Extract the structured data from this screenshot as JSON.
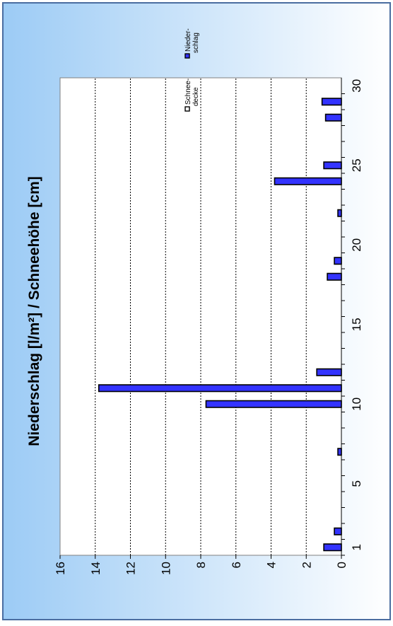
{
  "chart_data": {
    "type": "bar",
    "title": "Niederschlag [l/m²] / Schneehöhe [cm]",
    "xlabel": "",
    "ylabel": "",
    "x_ticks": [
      1,
      5,
      10,
      15,
      20,
      25,
      30
    ],
    "y_ticks": [
      0,
      2,
      4,
      6,
      8,
      10,
      12,
      14,
      16
    ],
    "xlim": [
      1,
      30
    ],
    "ylim": [
      0,
      16
    ],
    "grid": true,
    "legend_position": "top-right",
    "colors": {
      "niederschlag": "#3333ff",
      "schneedecke": "#ffffff",
      "background_start": "#9ccbf5",
      "background_end": "#ffffff",
      "frame_border": "#4a6da0"
    },
    "series": [
      {
        "name": "Nieder-\nschlag",
        "x": [
          1,
          2,
          7,
          10,
          11,
          12,
          18,
          19,
          22,
          24,
          25,
          28,
          29
        ],
        "values": [
          1.0,
          0.4,
          0.2,
          7.7,
          13.8,
          1.4,
          0.8,
          0.4,
          0.2,
          3.8,
          1.0,
          0.9,
          1.1
        ]
      },
      {
        "name": "Schnee-\ndecke",
        "x": [],
        "values": []
      }
    ]
  }
}
